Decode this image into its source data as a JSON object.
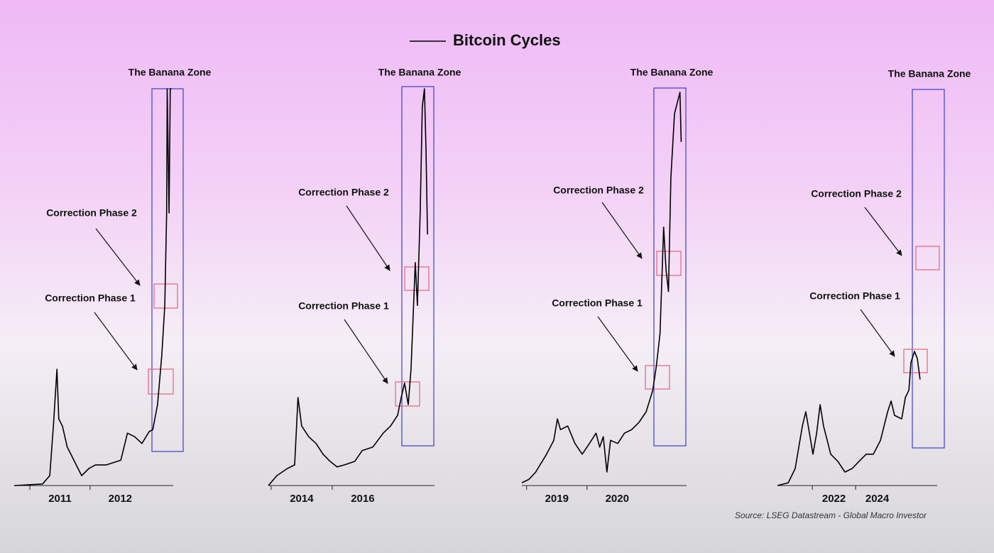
{
  "legend": {
    "name": "Bitcoin Cycles",
    "color": "#000000"
  },
  "source": "Source: LSEG Datastream - Global Macro Investor",
  "chart_data": [
    {
      "type": "line",
      "color": "#000000",
      "xlim": [
        2010.74,
        2013.38
      ],
      "ylim": [
        0,
        100
      ],
      "xticks": [
        2011,
        2012
      ],
      "annotations": [
        "The Banana Zone",
        "Correction Phase 2",
        "Correction Phase 1"
      ],
      "x": [
        2010.74,
        2011.21,
        2011.33,
        2011.39,
        2011.45,
        2011.48,
        2011.54,
        2011.62,
        2011.68,
        2011.8,
        2011.86,
        2011.98,
        2012.09,
        2012.27,
        2012.51,
        2012.62,
        2012.74,
        2012.86,
        2012.98,
        2013.04,
        2013.12,
        2013.19,
        2013.24,
        2013.27,
        2013.28,
        2013.31,
        2013.33,
        2013.35
      ],
      "values": [
        0,
        0.4,
        2.5,
        15,
        29.3,
        16.8,
        15,
        9.7,
        7.9,
        4.3,
        2.5,
        4.3,
        5.2,
        5.2,
        6.4,
        13.2,
        12.3,
        10.6,
        13.6,
        14.1,
        20.4,
        32.9,
        45.4,
        68.7,
        100,
        68.7,
        100,
        100
      ]
    },
    {
      "type": "line",
      "color": "#000000",
      "xlim": [
        2013.91,
        2019.35
      ],
      "ylim": [
        0,
        100
      ],
      "xticks": [
        2014,
        2016
      ],
      "annotations": [
        "The Banana Zone",
        "Correction Phase 2",
        "Correction Phase 1"
      ],
      "x": [
        2013.91,
        2014.19,
        2014.53,
        2014.77,
        2014.88,
        2015.0,
        2015.23,
        2015.47,
        2015.7,
        2015.93,
        2016.16,
        2016.4,
        2016.74,
        2016.98,
        2017.33,
        2017.67,
        2017.91,
        2018.14,
        2018.26,
        2018.37,
        2018.49,
        2018.58,
        2018.72,
        2018.79,
        2018.88,
        2018.95,
        2019.02,
        2019.07,
        2019.12
      ],
      "values": [
        0,
        2.5,
        4.3,
        5.2,
        22.2,
        15,
        12.3,
        10.6,
        7.9,
        6.1,
        4.7,
        5.2,
        6.1,
        8.8,
        9.7,
        13.2,
        15,
        17.7,
        22.2,
        25.8,
        20.4,
        29.3,
        56.2,
        45.4,
        68.7,
        95.5,
        100,
        84.8,
        63.3
      ]
    },
    {
      "type": "line",
      "color": "#000000",
      "xlim": [
        2018.92,
        2021.65
      ],
      "ylim": [
        0,
        100
      ],
      "xticks": [
        2019,
        2020
      ],
      "annotations": [
        "The Banana Zone",
        "Correction Phase 2",
        "Correction Phase 1"
      ],
      "x": [
        2018.92,
        2019.04,
        2019.15,
        2019.33,
        2019.45,
        2019.51,
        2019.56,
        2019.68,
        2019.8,
        2019.92,
        2020.04,
        2020.15,
        2020.21,
        2020.27,
        2020.33,
        2020.39,
        2020.51,
        2020.62,
        2020.74,
        2020.86,
        2020.98,
        2021.09,
        2021.15,
        2021.21,
        2021.27,
        2021.31,
        2021.35,
        2021.39,
        2021.45,
        2021.51,
        2021.54,
        2021.56
      ],
      "values": [
        0.7,
        1.6,
        3.4,
        7.9,
        11.4,
        16.8,
        14.1,
        15,
        10.6,
        7.9,
        10.6,
        13.2,
        9.7,
        12.3,
        3.4,
        11.4,
        10.6,
        13.2,
        14.1,
        15.9,
        18.6,
        24,
        30.2,
        38.3,
        65.1,
        54.4,
        48.9,
        77.6,
        93.7,
        97.3,
        99.1,
        86.6
      ]
    },
    {
      "type": "line",
      "color": "#000000",
      "xlim": [
        2020.39,
        2027.77
      ],
      "ylim": [
        0,
        100
      ],
      "xticks": [
        2022,
        2024
      ],
      "annotations": [
        "The Banana Zone",
        "Correction Phase 2",
        "Correction Phase 1"
      ],
      "x": [
        2020.39,
        2020.89,
        2021.21,
        2021.54,
        2021.7,
        2021.87,
        2022.03,
        2022.2,
        2022.36,
        2022.52,
        2022.69,
        2022.85,
        2023.18,
        2023.51,
        2023.84,
        2024.16,
        2024.49,
        2024.82,
        2025.15,
        2025.48,
        2025.64,
        2025.8,
        2026.13,
        2026.3,
        2026.46,
        2026.56,
        2026.72,
        2026.85,
        2026.98
      ],
      "values": [
        0,
        0.7,
        4.3,
        15,
        18.6,
        13.2,
        7.9,
        13.2,
        20.4,
        15,
        11.4,
        7.9,
        6.1,
        3.4,
        4.3,
        6.1,
        7.9,
        7.9,
        11.4,
        18.6,
        21.3,
        17.7,
        16.8,
        22.2,
        24,
        31.1,
        33.8,
        32,
        26.7
      ]
    }
  ]
}
